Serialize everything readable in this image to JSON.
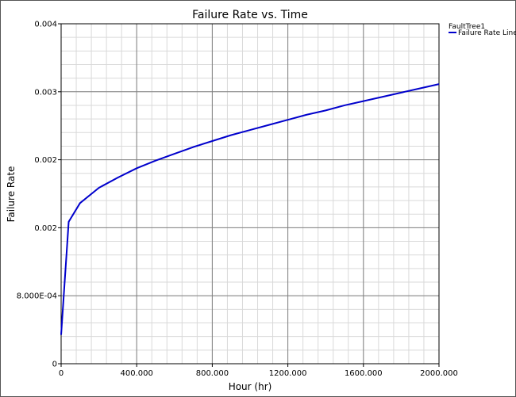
{
  "chart_data": {
    "type": "line",
    "title": "Failure Rate vs. Time",
    "xlabel": "Hour (hr)",
    "ylabel": "Failure Rate",
    "xlim": [
      0,
      2000
    ],
    "ylim": [
      0,
      0.004
    ],
    "x_ticks": [
      {
        "value": 0,
        "label": "0"
      },
      {
        "value": 400,
        "label": "400.000"
      },
      {
        "value": 800,
        "label": "800.000"
      },
      {
        "value": 1200,
        "label": "1200.000"
      },
      {
        "value": 1600,
        "label": "1600.000"
      },
      {
        "value": 2000,
        "label": "2000.000"
      }
    ],
    "y_ticks": [
      {
        "value": 0,
        "label": "0"
      },
      {
        "value": 0.0008,
        "label": "8.000E-04"
      },
      {
        "value": 0.0016,
        "label": "0.002"
      },
      {
        "value": 0.0024,
        "label": "0.002"
      },
      {
        "value": 0.0032,
        "label": "0.003"
      },
      {
        "value": 0.004,
        "label": "0.004"
      }
    ],
    "x_minor_step": 80,
    "y_minor_step": 0.00016,
    "grid": true,
    "legend": {
      "position": "top-right",
      "title": "FaultTree1",
      "entries": [
        "Failure Rate Line"
      ]
    },
    "series": [
      {
        "name": "Failure Rate Line",
        "color": "#0000cc",
        "x": [
          0,
          40,
          100,
          200,
          300,
          400,
          500,
          600,
          700,
          800,
          900,
          1000,
          1100,
          1200,
          1300,
          1400,
          1500,
          1600,
          1700,
          1800,
          1900,
          2000
        ],
        "y": [
          0.00034,
          0.00167,
          0.00189,
          0.00207,
          0.00219,
          0.0023,
          0.00239,
          0.00247,
          0.00255,
          0.00262,
          0.00269,
          0.00275,
          0.00281,
          0.00287,
          0.00293,
          0.00298,
          0.00304,
          0.00309,
          0.00314,
          0.00319,
          0.00324,
          0.00329
        ]
      }
    ]
  }
}
